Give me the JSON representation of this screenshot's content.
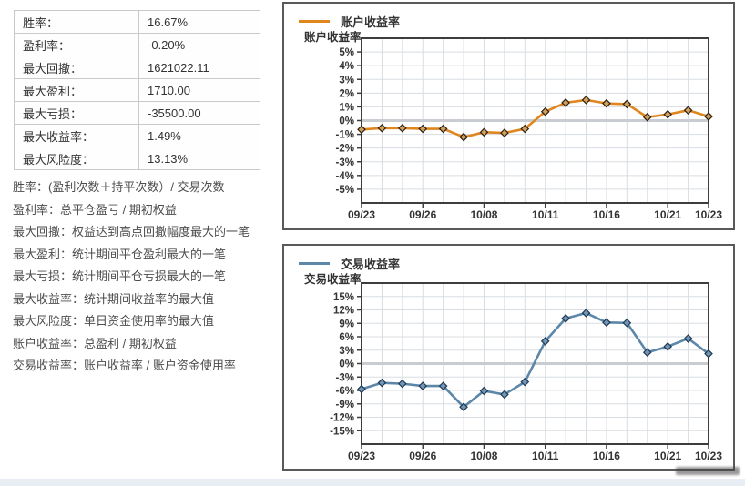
{
  "stats_table": {
    "rows": [
      {
        "label": "胜率：",
        "value": "16.67%"
      },
      {
        "label": "盈利率：",
        "value": "-0.20%"
      },
      {
        "label": "最大回撤：",
        "value": "1621022.11"
      },
      {
        "label": "最大盈利：",
        "value": "1710.00"
      },
      {
        "label": "最大亏损：",
        "value": "-35500.00"
      },
      {
        "label": "最大收益率：",
        "value": "1.49%"
      },
      {
        "label": "最大风险度：",
        "value": "13.13%"
      }
    ]
  },
  "notes": [
    "胜率：(盈利次数＋持平次数）/ 交易次数",
    "盈利率：总平仓盈亏 / 期初权益",
    "最大回撤：权益达到高点回撤幅度最大的一笔",
    "最大盈利：统计期间平仓盈利最大的一笔",
    "最大亏损：统计期间平仓亏损最大的一笔",
    "最大收益率：统计期间收益率的最大值",
    "最大风险度：单日资金使用率的最大值",
    "账户收益率：总盈利 / 期初权益",
    "交易收益率：账户收益率 / 账户资金使用率"
  ],
  "chart_data": [
    {
      "type": "line",
      "legend": "账户收益率",
      "axis_title": "账户收益率",
      "line_color": "#E0861E",
      "marker_fill": "#CFA05E",
      "marker_stroke": "#2E1F0C",
      "num_points": 18,
      "values": [
        -0.65,
        -0.55,
        -0.55,
        -0.6,
        -0.6,
        -1.2,
        -0.85,
        -0.9,
        -0.6,
        0.65,
        1.3,
        1.5,
        1.25,
        1.2,
        0.25,
        0.45,
        0.75,
        0.3
      ],
      "x_tick_labels": [
        "09/23",
        "09/26",
        "10/08",
        "10/11",
        "10/16",
        "10/21",
        "10/23"
      ],
      "x_tick_indices": [
        0,
        3,
        6,
        9,
        12,
        15,
        17
      ],
      "y_min": -6,
      "y_max": 6,
      "y_tick_values": [
        5,
        4,
        3,
        2,
        1,
        0,
        -1,
        -2,
        -3,
        -4,
        -5
      ],
      "y_tick_suffix": "%",
      "grid": true,
      "zero_line": true,
      "legend_position": "top-left"
    },
    {
      "type": "line",
      "legend": "交易收益率",
      "axis_title": "交易收益率",
      "line_color": "#5C87A8",
      "marker_fill": "#7495B3",
      "marker_stroke": "#1C3953",
      "num_points": 18,
      "values": [
        -5.7,
        -4.3,
        -4.5,
        -5.0,
        -5.0,
        -9.7,
        -6.1,
        -6.9,
        -4.1,
        5.0,
        10.1,
        11.3,
        9.2,
        9.1,
        2.5,
        3.8,
        5.6,
        2.2
      ],
      "x_tick_labels": [
        "09/23",
        "09/26",
        "10/08",
        "10/11",
        "10/16",
        "10/21",
        "10/23"
      ],
      "x_tick_indices": [
        0,
        3,
        6,
        9,
        12,
        15,
        17
      ],
      "y_min": -18,
      "y_max": 18,
      "y_tick_values": [
        15,
        12,
        9,
        6,
        3,
        0,
        -3,
        -6,
        -9,
        -12,
        -15
      ],
      "y_tick_suffix": "%",
      "grid": true,
      "zero_line": true,
      "legend_position": "top-left"
    }
  ]
}
